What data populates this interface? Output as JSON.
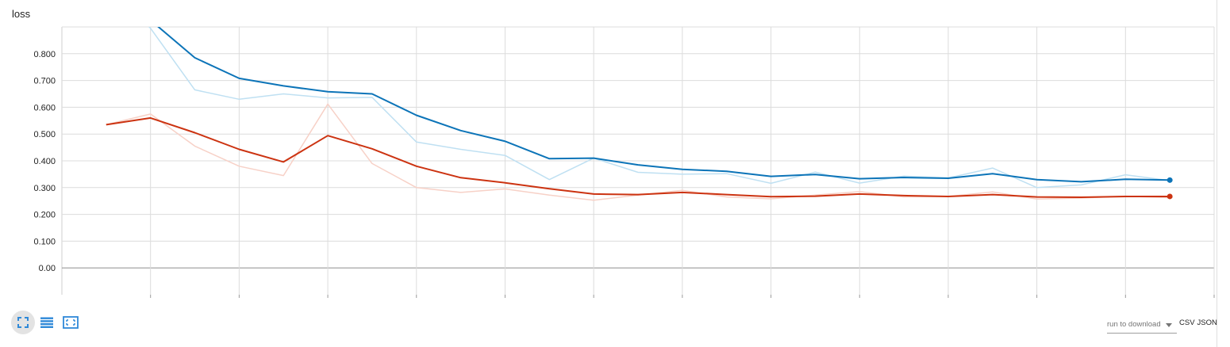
{
  "chart_data": {
    "type": "line",
    "title": "loss",
    "xlabel": "",
    "ylabel": "",
    "ylim": [
      -0.1,
      0.9
    ],
    "xlim": [
      0,
      26
    ],
    "yticks": [
      0.0,
      0.1,
      0.2,
      0.3,
      0.4,
      0.5,
      0.6,
      0.7,
      0.8
    ],
    "ytick_labels": [
      "0.00",
      "0.100",
      "0.200",
      "0.300",
      "0.400",
      "0.500",
      "0.600",
      "0.700",
      "0.800"
    ],
    "xticks": [
      2,
      4,
      6,
      8,
      10,
      12,
      14,
      16,
      18,
      20,
      22,
      24,
      26
    ],
    "grid": true,
    "series": [
      {
        "kind": "raw",
        "color": "#bfe0f2",
        "x": [
          1,
          2,
          3,
          4,
          5,
          6,
          7,
          8,
          9,
          10,
          11,
          12,
          13,
          14,
          15,
          16,
          17,
          18,
          19,
          20,
          21,
          22,
          23,
          24,
          25
        ],
        "values": [
          1.05,
          0.895,
          0.665,
          0.63,
          0.65,
          0.635,
          0.637,
          0.47,
          0.443,
          0.42,
          0.33,
          0.41,
          0.357,
          0.35,
          0.352,
          0.316,
          0.358,
          0.317,
          0.343,
          0.336,
          0.373,
          0.3,
          0.31,
          0.348,
          0.326
        ]
      },
      {
        "kind": "raw",
        "color": "#f7d1c7",
        "x": [
          1,
          2,
          3,
          4,
          5,
          6,
          7,
          8,
          9,
          10,
          11,
          12,
          13,
          14,
          15,
          16,
          17,
          18,
          19,
          20,
          21,
          22,
          23,
          24,
          25
        ],
        "values": [
          0.535,
          0.575,
          0.455,
          0.38,
          0.345,
          0.612,
          0.39,
          0.3,
          0.282,
          0.295,
          0.272,
          0.253,
          0.272,
          0.29,
          0.265,
          0.258,
          0.272,
          0.285,
          0.265,
          0.267,
          0.284,
          0.257,
          0.261,
          0.268,
          0.262
        ]
      },
      {
        "kind": "smoothed",
        "color": "#0c74b8",
        "x": [
          1,
          2,
          3,
          4,
          5,
          6,
          7,
          8,
          9,
          10,
          11,
          12,
          13,
          14,
          15,
          16,
          17,
          18,
          19,
          20,
          21,
          22,
          23,
          24,
          25
        ],
        "values": [
          1.05,
          0.925,
          0.785,
          0.708,
          0.68,
          0.658,
          0.65,
          0.57,
          0.513,
          0.473,
          0.408,
          0.41,
          0.385,
          0.368,
          0.361,
          0.342,
          0.349,
          0.333,
          0.338,
          0.335,
          0.352,
          0.33,
          0.322,
          0.331,
          0.328
        ]
      },
      {
        "kind": "smoothed",
        "color": "#cc3311",
        "x": [
          1,
          2,
          3,
          4,
          5,
          6,
          7,
          8,
          9,
          10,
          11,
          12,
          13,
          14,
          15,
          16,
          17,
          18,
          19,
          20,
          21,
          22,
          23,
          24,
          25
        ],
        "values": [
          0.535,
          0.56,
          0.505,
          0.443,
          0.396,
          0.494,
          0.445,
          0.38,
          0.337,
          0.318,
          0.296,
          0.276,
          0.274,
          0.282,
          0.274,
          0.266,
          0.268,
          0.276,
          0.27,
          0.267,
          0.274,
          0.265,
          0.264,
          0.267,
          0.267
        ]
      }
    ]
  },
  "toolbar": {
    "expand_icon": "expand-icon",
    "log_scale_icon": "list-lines-icon",
    "fit_domain_icon": "fit-domain-icon"
  },
  "download": {
    "select_value": "run to download",
    "csv_label": "CSV",
    "json_label": "JSON"
  },
  "colors": {
    "blue": "#0c74b8",
    "red": "#cc3311",
    "light_blue": "#bfe0f2",
    "light_red": "#f7d1c7",
    "grid": "#dcdcdc",
    "icon": "#2f89d8"
  }
}
